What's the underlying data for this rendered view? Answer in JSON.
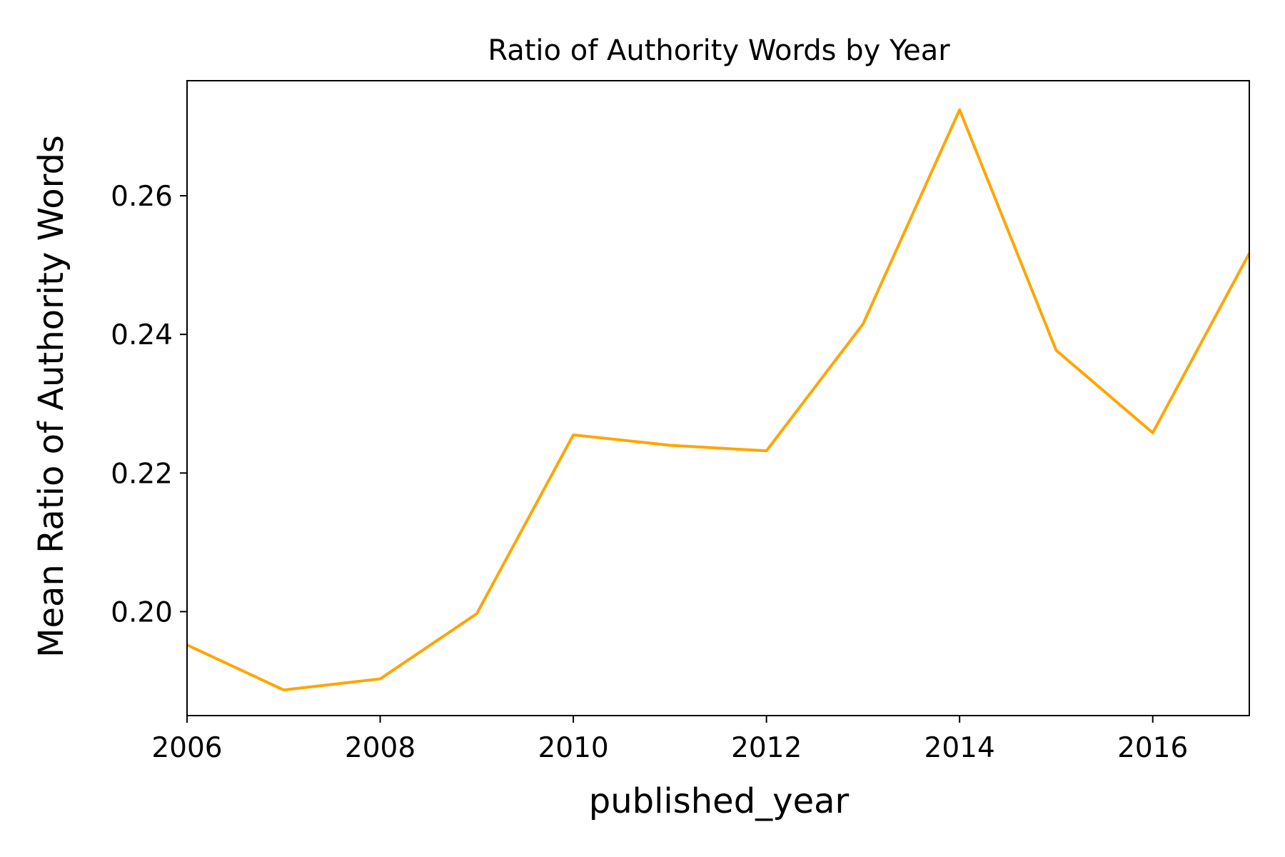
{
  "chart_data": {
    "type": "line",
    "title": "Ratio of Authority Words by Year",
    "xlabel": "published_year",
    "ylabel": "Mean Ratio of Authority Words",
    "x": [
      2006,
      2007,
      2008,
      2009,
      2010,
      2011,
      2012,
      2013,
      2014,
      2015,
      2016,
      2017
    ],
    "series": [
      {
        "values": [
          0.1952,
          0.1887,
          0.1903,
          0.1997,
          0.2255,
          0.224,
          0.2232,
          0.2415,
          0.2724,
          0.2377,
          0.2258,
          0.2517
        ]
      }
    ],
    "xlim": [
      2006,
      2017
    ],
    "ylim": [
      0.185,
      0.2766
    ],
    "x_ticks": [
      2006,
      2008,
      2010,
      2012,
      2014,
      2016
    ],
    "x_tick_labels": [
      "2006",
      "2008",
      "2010",
      "2012",
      "2014",
      "2016"
    ],
    "y_ticks": [
      0.2,
      0.22,
      0.24,
      0.26
    ],
    "y_tick_labels": [
      "0.20",
      "0.22",
      "0.24",
      "0.26"
    ],
    "grid": false,
    "line_color": "#FFA500"
  }
}
